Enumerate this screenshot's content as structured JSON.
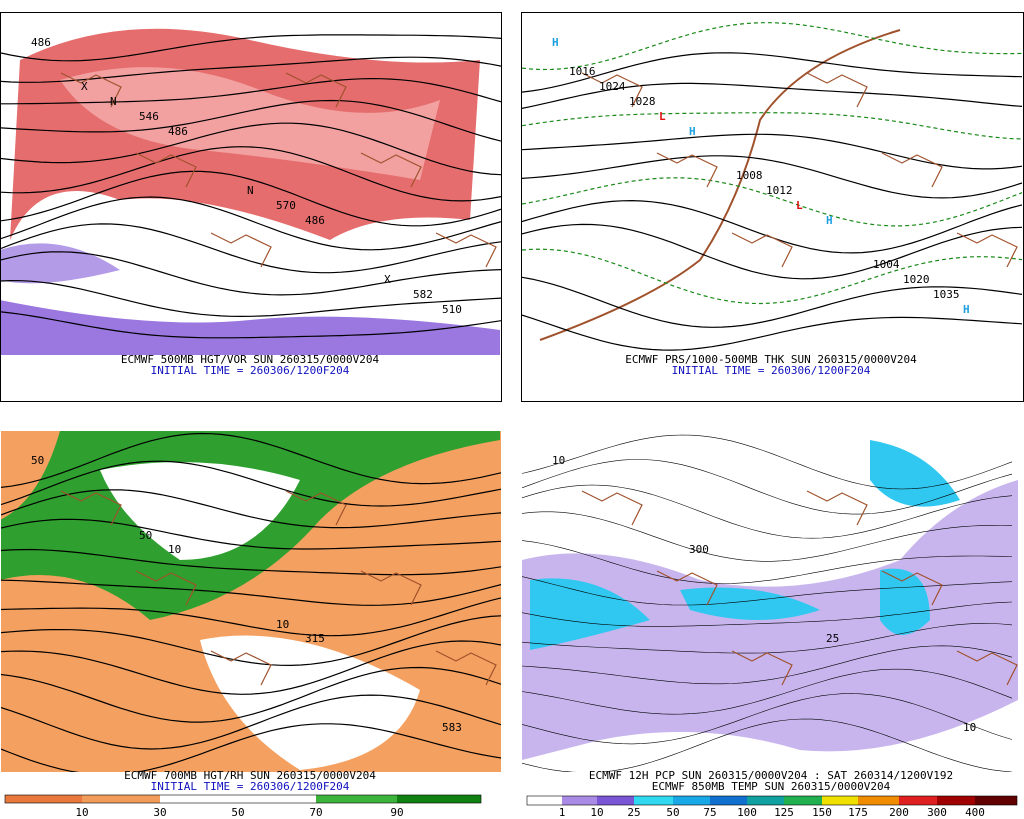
{
  "panels": [
    {
      "lines": [
        "ECMWF 500MB HGT/VOR SUN 260315/0000V204",
        "INITIAL TIME = 260306/1200F204"
      ],
      "map_labels": [
        "486",
        "486",
        "486",
        "510",
        "546",
        "570",
        "582",
        "N",
        "N",
        "X",
        "X"
      ]
    },
    {
      "lines": [
        "ECMWF PRS/1000-500MB THK SUN 260315/0000V204",
        "INITIAL TIME = 260306/1200F204"
      ],
      "map_labels": [
        "H",
        "H",
        "H",
        "H",
        "L",
        "L",
        "1035",
        "1028",
        "1012",
        "1020",
        "1024",
        "1008",
        "1004",
        "1016"
      ]
    },
    {
      "lines": [
        "ECMWF 700MB HGT/RH SUN 260315/0000V204",
        "INITIAL TIME = 260306/1200F204"
      ],
      "map_labels": [
        "50",
        "10",
        "315",
        "583",
        "50",
        "10"
      ]
    },
    {
      "lines": [
        "ECMWF 12H PCP SUN 260315/0000V204 : SAT 260314/1200V192",
        "ECMWF 850MB TEMP SUN 260315/0000V204"
      ],
      "map_labels": [
        "10",
        "300",
        "25",
        "10"
      ]
    }
  ],
  "colorbars": [
    {
      "labels": [
        "10",
        "30",
        "50",
        "70",
        "90"
      ]
    },
    {
      "labels": [
        "1",
        "10",
        "25",
        "50",
        "75",
        "100",
        "125",
        "150",
        "175",
        "200",
        "300",
        "400"
      ]
    }
  ]
}
